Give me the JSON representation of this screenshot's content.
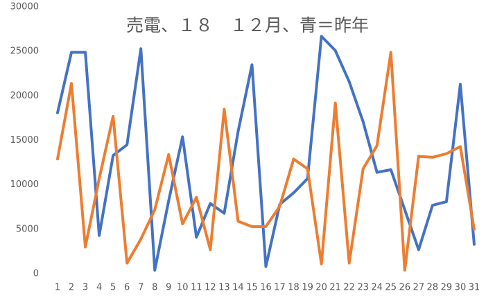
{
  "chart_data": {
    "type": "line",
    "title": "売電、１８　１２月、青＝昨年",
    "categories": [
      "1",
      "2",
      "3",
      "4",
      "5",
      "6",
      "7",
      "8",
      "9",
      "10",
      "11",
      "12",
      "13",
      "14",
      "15",
      "16",
      "17",
      "18",
      "19",
      "20",
      "21",
      "22",
      "23",
      "24",
      "25",
      "26",
      "27",
      "28",
      "29",
      "30",
      "31"
    ],
    "series": [
      {
        "color": "#4472c4",
        "values": [
          18100,
          24900,
          24900,
          4300,
          13300,
          14500,
          25300,
          400,
          8200,
          15400,
          4100,
          7900,
          6800,
          16000,
          23500,
          800,
          7800,
          9100,
          10700,
          26700,
          25100,
          21600,
          17100,
          11400,
          11700,
          7200,
          2700,
          7700,
          8100,
          21300,
          3300
        ]
      },
      {
        "color": "#ed7d31",
        "values": [
          12900,
          21400,
          3000,
          10700,
          17700,
          1200,
          3900,
          7200,
          13400,
          5600,
          8600,
          2700,
          18500,
          5900,
          5300,
          5300,
          7600,
          12900,
          11800,
          1100,
          19200,
          1200,
          11800,
          14400,
          24900,
          400,
          13200,
          13100,
          13500,
          14300,
          5000
        ]
      }
    ],
    "ylim": [
      0,
      30000
    ],
    "yticks": [
      0,
      5000,
      10000,
      15000,
      20000,
      25000,
      30000
    ],
    "grid": false
  }
}
